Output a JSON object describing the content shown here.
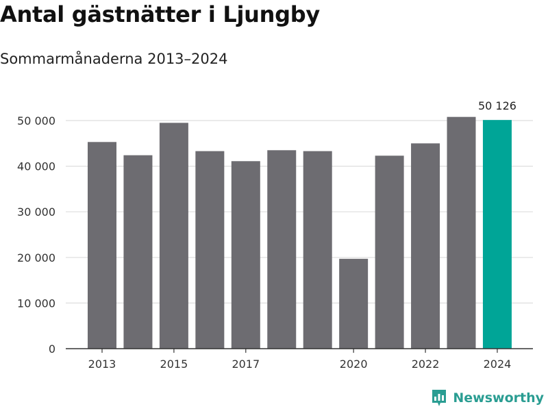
{
  "title": "Antal gästnätter i Ljungby",
  "subtitle": "Sommarmånaderna 2013–2024",
  "brand": {
    "name": "Newsworthy",
    "logo_icon": "newsworthy-bar-chart-logo-icon"
  },
  "colors": {
    "bar": "#6d6c71",
    "highlight": "#00a597",
    "grid": "#dedede",
    "axis": "#333333",
    "brand": "#2a9d92"
  },
  "chart_data": {
    "type": "bar",
    "title": "Antal gästnätter i Ljungby",
    "subtitle": "Sommarmånaderna 2013–2024",
    "xlabel": "",
    "ylabel": "",
    "categories": [
      "2013",
      "2014",
      "2015",
      "2016",
      "2017",
      "2018",
      "2019",
      "2020",
      "2021",
      "2022",
      "2023",
      "2024"
    ],
    "values": [
      45300,
      42400,
      49500,
      43300,
      41100,
      43500,
      43300,
      19700,
      42300,
      45000,
      50800,
      50126
    ],
    "x_tick_labels": [
      "2013",
      "",
      "2015",
      "",
      "2017",
      "",
      "",
      "2020",
      "",
      "2022",
      "",
      "2024"
    ],
    "ylim": [
      0,
      50000
    ],
    "y_ticks": [
      0,
      10000,
      20000,
      30000,
      40000,
      50000
    ],
    "y_tick_labels": [
      "0",
      "10 000",
      "20 000",
      "30 000",
      "40 000",
      "50 000"
    ],
    "highlight_index": 11,
    "annotation": {
      "index": 11,
      "text": "50 126"
    },
    "grid": true
  }
}
